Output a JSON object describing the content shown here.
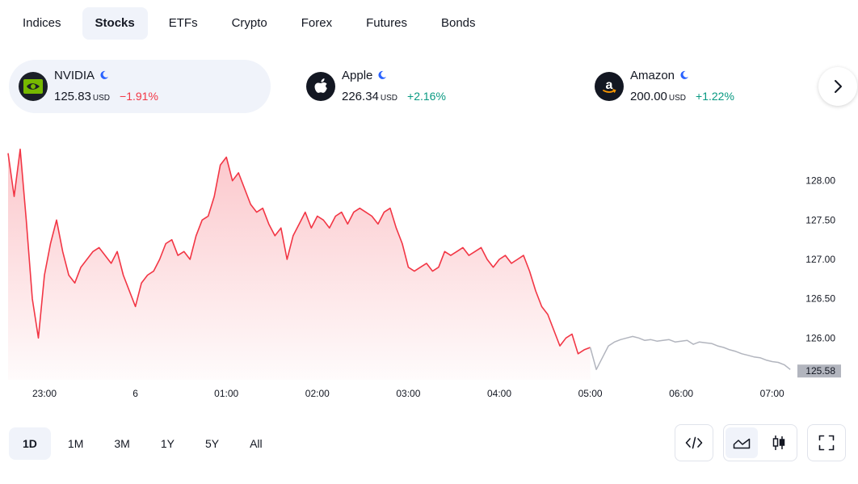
{
  "tabs": [
    {
      "label": "Indices",
      "active": false
    },
    {
      "label": "Stocks",
      "active": true
    },
    {
      "label": "ETFs",
      "active": false
    },
    {
      "label": "Crypto",
      "active": false
    },
    {
      "label": "Forex",
      "active": false
    },
    {
      "label": "Futures",
      "active": false
    },
    {
      "label": "Bonds",
      "active": false
    }
  ],
  "cards": [
    {
      "name": "NVIDIA",
      "price": "125.83",
      "unit": "USD",
      "change": "−1.91%",
      "direction": "down",
      "logo": "nvidia-logo-icon",
      "active": true
    },
    {
      "name": "Apple",
      "price": "226.34",
      "unit": "USD",
      "change": "+2.16%",
      "direction": "up",
      "logo": "apple-logo-icon",
      "active": false
    },
    {
      "name": "Amazon",
      "price": "200.00",
      "unit": "USD",
      "change": "+1.22%",
      "direction": "up",
      "logo": "amazon-logo-icon",
      "active": false
    }
  ],
  "colors": {
    "accent_bg": "#f0f3fa",
    "negative": "#f23645",
    "positive": "#089981",
    "extended_hours_line": "#b2b5be",
    "market_status_moon": "#2962ff",
    "price_label_bg": "#b2b5be"
  },
  "chart_data": {
    "type": "area",
    "y_ticks": [
      "128.00",
      "127.50",
      "127.00",
      "126.50",
      "126.00"
    ],
    "x_ticks": [
      "23:00",
      "6",
      "01:00",
      "02:00",
      "03:00",
      "04:00",
      "05:00",
      "06:00",
      "07:00"
    ],
    "ylim": [
      125.5,
      128.5
    ],
    "last_price_label": "125.58",
    "series": [
      {
        "session": "regular",
        "color": "#f23645",
        "x": [
          "22:36",
          "22:40",
          "22:44",
          "22:48",
          "22:52",
          "22:56",
          "23:00",
          "23:04",
          "23:08",
          "23:12",
          "23:16",
          "23:20",
          "23:24",
          "23:28",
          "23:32",
          "23:36",
          "23:40",
          "23:44",
          "23:48",
          "23:52",
          "23:56",
          "00:00",
          "00:04",
          "00:08",
          "00:12",
          "00:16",
          "00:20",
          "00:24",
          "00:28",
          "00:32",
          "00:36",
          "00:40",
          "00:44",
          "00:48",
          "00:52",
          "00:56",
          "01:00",
          "01:04",
          "01:08",
          "01:12",
          "01:16",
          "01:20",
          "01:24",
          "01:28",
          "01:32",
          "01:36",
          "01:40",
          "01:44",
          "01:48",
          "01:52",
          "01:56",
          "02:00",
          "02:04",
          "02:08",
          "02:12",
          "02:16",
          "02:20",
          "02:24",
          "02:28",
          "02:32",
          "02:36",
          "02:40",
          "02:44",
          "02:48",
          "02:52",
          "02:56",
          "03:00",
          "03:04",
          "03:08",
          "03:12",
          "03:16",
          "03:20",
          "03:24",
          "03:28",
          "03:32",
          "03:36",
          "03:40",
          "03:44",
          "03:48",
          "03:52",
          "03:56",
          "04:00",
          "04:04",
          "04:08",
          "04:12",
          "04:16",
          "04:20",
          "04:24",
          "04:28",
          "04:32",
          "04:36",
          "04:40",
          "04:44",
          "04:48",
          "04:52",
          "04:56",
          "05:00"
        ],
        "values": [
          128.35,
          127.8,
          128.4,
          127.5,
          126.5,
          126.0,
          126.8,
          127.2,
          127.5,
          127.1,
          126.8,
          126.7,
          126.9,
          127.0,
          127.1,
          127.15,
          127.05,
          126.95,
          127.1,
          126.8,
          126.6,
          126.4,
          126.7,
          126.8,
          126.85,
          127.0,
          127.2,
          127.25,
          127.05,
          127.1,
          127.0,
          127.3,
          127.5,
          127.55,
          127.8,
          128.2,
          128.3,
          128.0,
          128.1,
          127.9,
          127.7,
          127.6,
          127.65,
          127.45,
          127.3,
          127.4,
          127.0,
          127.3,
          127.45,
          127.6,
          127.4,
          127.55,
          127.5,
          127.4,
          127.55,
          127.6,
          127.45,
          127.6,
          127.65,
          127.6,
          127.55,
          127.45,
          127.6,
          127.65,
          127.4,
          127.2,
          126.9,
          126.85,
          126.9,
          126.95,
          126.85,
          126.9,
          127.1,
          127.05,
          127.1,
          127.15,
          127.05,
          127.1,
          127.15,
          127.0,
          126.9,
          127.0,
          127.05,
          126.95,
          127.0,
          127.05,
          126.85,
          126.6,
          126.4,
          126.3,
          126.1,
          125.9,
          126.0,
          126.05,
          125.8,
          125.85,
          125.88
        ]
      },
      {
        "session": "extended",
        "color": "#b2b5be",
        "x": [
          "05:00",
          "05:04",
          "05:08",
          "05:12",
          "05:16",
          "05:20",
          "05:24",
          "05:28",
          "05:32",
          "05:36",
          "05:40",
          "05:44",
          "05:48",
          "05:52",
          "05:56",
          "06:00",
          "06:04",
          "06:08",
          "06:12",
          "06:16",
          "06:20",
          "06:24",
          "06:28",
          "06:32",
          "06:36",
          "06:40",
          "06:44",
          "06:48",
          "06:52",
          "06:56",
          "07:00",
          "07:04",
          "07:08",
          "07:12"
        ],
        "values": [
          125.88,
          125.6,
          125.75,
          125.9,
          125.95,
          125.98,
          126.0,
          126.02,
          126.0,
          125.97,
          125.98,
          125.96,
          125.97,
          125.98,
          125.95,
          125.96,
          125.97,
          125.92,
          125.95,
          125.94,
          125.93,
          125.9,
          125.88,
          125.85,
          125.83,
          125.8,
          125.78,
          125.76,
          125.75,
          125.72,
          125.7,
          125.69,
          125.66,
          125.6
        ]
      }
    ],
    "grid": false,
    "legend": "none"
  },
  "ranges": [
    {
      "label": "1D",
      "active": true
    },
    {
      "label": "1M",
      "active": false
    },
    {
      "label": "3M",
      "active": false
    },
    {
      "label": "1Y",
      "active": false
    },
    {
      "label": "5Y",
      "active": false
    },
    {
      "label": "All",
      "active": false
    }
  ],
  "tools": {
    "embed": "code-icon",
    "area_chart": "area-chart-icon",
    "candles": "candlestick-icon",
    "fullscreen": "fullscreen-icon"
  }
}
